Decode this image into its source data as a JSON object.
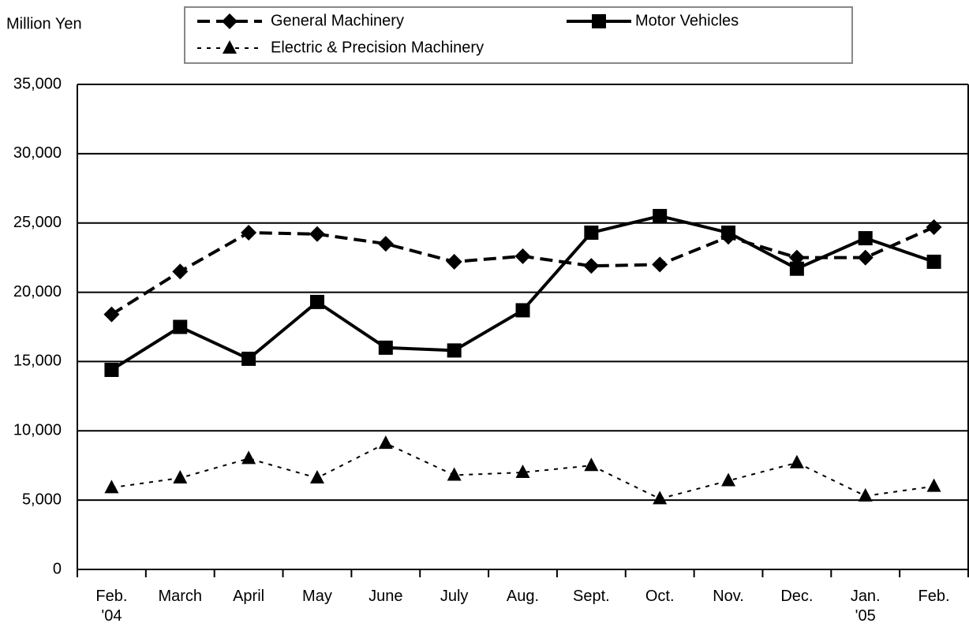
{
  "chart_data": {
    "type": "line",
    "y_label": "Million Yen",
    "categories": [
      "Feb.\n'04",
      "March",
      "April",
      "May",
      "June",
      "July",
      "Aug.",
      "Sept.",
      "Oct.",
      "Nov.",
      "Dec.",
      "Jan.\n'05",
      "Feb."
    ],
    "series": [
      {
        "name": "General Machinery",
        "color": "#000000",
        "line_style": "dashed",
        "marker": "diamond",
        "values": [
          18400,
          21500,
          24300,
          24200,
          23500,
          22200,
          22600,
          21900,
          22000,
          24000,
          22500,
          22500,
          24700
        ]
      },
      {
        "name": "Motor Vehicles",
        "color": "#000000",
        "line_style": "solid",
        "marker": "square",
        "values": [
          14400,
          17500,
          15200,
          19300,
          16000,
          15800,
          18700,
          24300,
          25500,
          24300,
          21700,
          23900,
          22200
        ]
      },
      {
        "name": "Electric & Precision Machinery",
        "color": "#000000",
        "line_style": "dotted",
        "marker": "triangle",
        "values": [
          5900,
          6600,
          8000,
          6600,
          9100,
          6800,
          7000,
          7500,
          5100,
          6400,
          7700,
          5300,
          6000
        ]
      }
    ],
    "ylim": [
      0,
      35000
    ],
    "yticks": [
      0,
      {
        "value": 5000,
        "label": "5,000"
      },
      {
        "value": 10000,
        "label": "10,000"
      },
      {
        "value": 15000,
        "label": "15,000"
      },
      {
        "value": 20000,
        "label": "20,000"
      },
      {
        "value": 25000,
        "label": "25,000"
      },
      {
        "value": 30000,
        "label": "30,000"
      },
      {
        "value": 35000,
        "label": "35,000"
      }
    ],
    "grid": true
  }
}
